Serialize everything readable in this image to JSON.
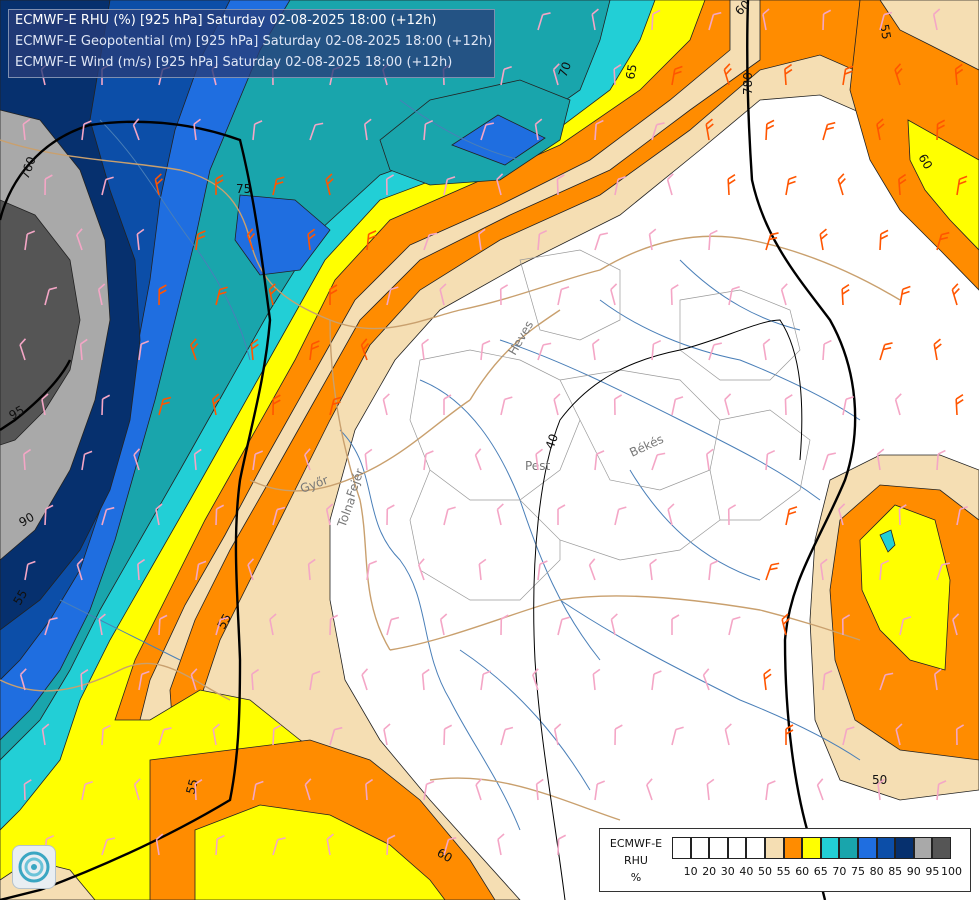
{
  "header": {
    "line1": "ECMWF-E RHU (%) [925 hPa] Saturday 02-08-2025 18:00 (+12h)",
    "line2": "ECMWF-E Geopotential (m) [925 hPa] Saturday 02-08-2025 18:00 (+12h)",
    "line3": "ECMWF-E Wind (m/s) [925 hPa] Saturday 02-08-2025 18:00 (+12h)"
  },
  "legend": {
    "title_line1": "ECMWF-E",
    "title_line2": "RHU",
    "title_line3": "%",
    "bins": [
      {
        "value": "10",
        "color": "#ffffff"
      },
      {
        "value": "20",
        "color": "#ffffff"
      },
      {
        "value": "30",
        "color": "#ffffff"
      },
      {
        "value": "40",
        "color": "#ffffff"
      },
      {
        "value": "50",
        "color": "#ffffff"
      },
      {
        "value": "55",
        "color": "#f5deb3"
      },
      {
        "value": "60",
        "color": "#ff8c00"
      },
      {
        "value": "65",
        "color": "#ffff00"
      },
      {
        "value": "70",
        "color": "#22cfd6"
      },
      {
        "value": "75",
        "color": "#19a5ac"
      },
      {
        "value": "80",
        "color": "#1f6ee0"
      },
      {
        "value": "85",
        "color": "#0c4ea8"
      },
      {
        "value": "90",
        "color": "#06306e"
      },
      {
        "value": "95",
        "color": "#a9a9a9"
      },
      {
        "value": "100",
        "color": "#555555"
      }
    ]
  },
  "map": {
    "region_labels": [
      "Pest",
      "Békés",
      "Heves",
      "Fejér",
      "Tolna",
      "Győr"
    ],
    "geopotential_labels": [
      "760",
      "780"
    ],
    "rhu_labels": [
      "40",
      "50",
      "55",
      "55",
      "60",
      "60",
      "60",
      "65",
      "70",
      "75",
      "90",
      "95",
      "55"
    ]
  },
  "colors": {
    "rh_gray_dark": "#555555",
    "rh_gray": "#a9a9a9",
    "rh_navy": "#06306e",
    "rh_blue_dark": "#0c4ea8",
    "rh_blue": "#1f6ee0",
    "rh_teal": "#19a5ac",
    "rh_cyan": "#22cfd6",
    "rh_yellow": "#ffff00",
    "rh_orange": "#ff8c00",
    "rh_wheat": "#f5deb3",
    "wind_barb_light": "#f4a6c6",
    "wind_barb_strong": "#ff5500",
    "rivers": "#4a7fb8",
    "borders": "#c9a06e"
  }
}
